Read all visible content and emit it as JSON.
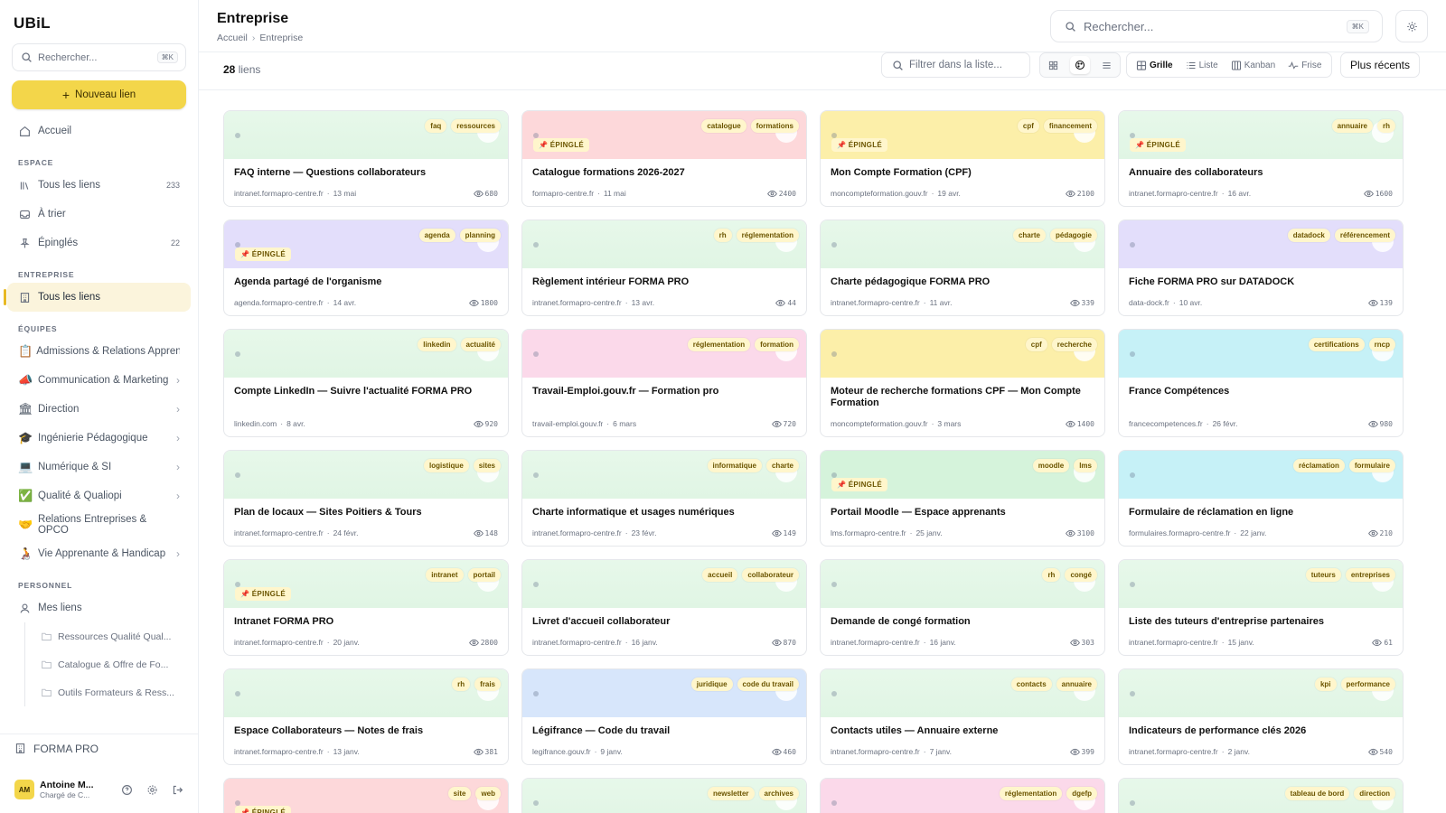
{
  "app": {
    "logo": "UBiL"
  },
  "sidebar": {
    "search_placeholder": "Rechercher...",
    "search_kbd": "⌘K",
    "new_link": "Nouveau lien",
    "home": "Accueil",
    "section_espace": "ESPACE",
    "all_links": "Tous les liens",
    "all_links_count": "233",
    "to_sort": "À trier",
    "pinned": "Épinglés",
    "pinned_count": "22",
    "section_entreprise": "ENTREPRISE",
    "entreprise_all": "Tous les liens",
    "section_equipes": "ÉQUIPES",
    "teams": [
      {
        "emoji": "📋",
        "label": "Admissions & Relations Apprenants",
        "chev": ""
      },
      {
        "emoji": "📣",
        "label": "Communication & Marketing",
        "chev": "›"
      },
      {
        "emoji": "🏛",
        "label": "Direction",
        "chev": "›"
      },
      {
        "emoji": "🎓",
        "label": "Ingénierie Pédagogique",
        "chev": "›"
      },
      {
        "emoji": "💻",
        "label": "Numérique & SI",
        "chev": "›"
      },
      {
        "emoji": "✅",
        "label": "Qualité & Qualiopi",
        "chev": "›"
      },
      {
        "emoji": "🤝",
        "label": "Relations Entreprises & OPCO",
        "chev": ""
      },
      {
        "emoji": "🧑‍🦽",
        "label": "Vie Apprenante & Handicap",
        "chev": "›"
      }
    ],
    "section_personnel": "PERSONNEL",
    "my_links": "Mes liens",
    "folders": [
      "Ressources Qualité Qual...",
      "Catalogue & Offre de Fo...",
      "Outils Formateurs & Ress..."
    ],
    "org": "FORMA PRO",
    "user": {
      "initials": "AM",
      "name": "Antoine M...",
      "role": "Chargé de C..."
    }
  },
  "header": {
    "title": "Entreprise",
    "crumb_home": "Accueil",
    "crumb_current": "Entreprise",
    "search_placeholder": "Rechercher...",
    "search_kbd": "⌘K"
  },
  "toolbar": {
    "count": "28",
    "count_label": "liens",
    "filter_placeholder": "Filtrer dans la liste...",
    "views": [
      "Grille",
      "Liste",
      "Kanban",
      "Frise"
    ],
    "active_view": "Grille",
    "sort": "Plus récents"
  },
  "colors": {
    "accent": "#f3d64a",
    "tag_bg": "#fff6cc"
  },
  "cards": [
    {
      "title": "FAQ interne — Questions collaborateurs",
      "domain": "intranet.formapro-centre.fr",
      "date": "13 mai",
      "views": "680",
      "tags": [
        "faq",
        "ressources"
      ],
      "pinned": false,
      "color": "green"
    },
    {
      "title": "Catalogue formations 2026-2027",
      "domain": "formapro-centre.fr",
      "date": "11 mai",
      "views": "2400",
      "tags": [
        "catalogue",
        "formations"
      ],
      "pinned": true,
      "color": "pink"
    },
    {
      "title": "Mon Compte Formation (CPF)",
      "domain": "moncompteformation.gouv.fr",
      "date": "19 avr.",
      "views": "2100",
      "tags": [
        "cpf",
        "financement"
      ],
      "pinned": true,
      "color": "yellow"
    },
    {
      "title": "Annuaire des collaborateurs",
      "domain": "intranet.formapro-centre.fr",
      "date": "16 avr.",
      "views": "1600",
      "tags": [
        "annuaire",
        "rh"
      ],
      "pinned": true,
      "color": "green"
    },
    {
      "title": "Agenda partagé de l'organisme",
      "domain": "agenda.formapro-centre.fr",
      "date": "14 avr.",
      "views": "1800",
      "tags": [
        "agenda",
        "planning"
      ],
      "pinned": true,
      "color": "purple"
    },
    {
      "title": "Règlement intérieur FORMA PRO",
      "domain": "intranet.formapro-centre.fr",
      "date": "13 avr.",
      "views": "44",
      "tags": [
        "rh",
        "réglementation"
      ],
      "pinned": false,
      "color": "green"
    },
    {
      "title": "Charte pédagogique FORMA PRO",
      "domain": "intranet.formapro-centre.fr",
      "date": "11 avr.",
      "views": "339",
      "tags": [
        "charte",
        "pédagogie"
      ],
      "pinned": false,
      "color": "green"
    },
    {
      "title": "Fiche FORMA PRO sur DATADOCK",
      "domain": "data-dock.fr",
      "date": "10 avr.",
      "views": "139",
      "tags": [
        "datadock",
        "référencement"
      ],
      "pinned": false,
      "color": "purple"
    },
    {
      "title": "Compte LinkedIn — Suivre l'actualité FORMA PRO",
      "domain": "linkedin.com",
      "date": "8 avr.",
      "views": "920",
      "tags": [
        "linkedin",
        "actualité"
      ],
      "pinned": false,
      "color": "green"
    },
    {
      "title": "Travail-Emploi.gouv.fr — Formation pro",
      "domain": "travail-emploi.gouv.fr",
      "date": "6 mars",
      "views": "720",
      "tags": [
        "réglementation",
        "formation"
      ],
      "pinned": false,
      "color": "pinkb"
    },
    {
      "title": "Moteur de recherche formations CPF — Mon Compte Formation",
      "domain": "moncompteformation.gouv.fr",
      "date": "3 mars",
      "views": "1400",
      "tags": [
        "cpf",
        "recherche"
      ],
      "pinned": false,
      "color": "yellow"
    },
    {
      "title": "France Compétences",
      "domain": "francecompetences.fr",
      "date": "26 févr.",
      "views": "980",
      "tags": [
        "certifications",
        "rncp"
      ],
      "pinned": false,
      "color": "cyan"
    },
    {
      "title": "Plan de locaux — Sites Poitiers & Tours",
      "domain": "intranet.formapro-centre.fr",
      "date": "24 févr.",
      "views": "148",
      "tags": [
        "logistique",
        "sites"
      ],
      "pinned": false,
      "color": "green"
    },
    {
      "title": "Charte informatique et usages numériques",
      "domain": "intranet.formapro-centre.fr",
      "date": "23 févr.",
      "views": "149",
      "tags": [
        "informatique",
        "charte"
      ],
      "pinned": false,
      "color": "green"
    },
    {
      "title": "Portail Moodle — Espace apprenants",
      "domain": "lms.formapro-centre.fr",
      "date": "25 janv.",
      "views": "3100",
      "tags": [
        "moodle",
        "lms"
      ],
      "pinned": true,
      "color": "green2"
    },
    {
      "title": "Formulaire de réclamation en ligne",
      "domain": "formulaires.formapro-centre.fr",
      "date": "22 janv.",
      "views": "210",
      "tags": [
        "réclamation",
        "formulaire"
      ],
      "pinned": false,
      "color": "cyan"
    },
    {
      "title": "Intranet FORMA PRO",
      "domain": "intranet.formapro-centre.fr",
      "date": "20 janv.",
      "views": "2800",
      "tags": [
        "intranet",
        "portail"
      ],
      "pinned": true,
      "color": "green"
    },
    {
      "title": "Livret d'accueil collaborateur",
      "domain": "intranet.formapro-centre.fr",
      "date": "16 janv.",
      "views": "870",
      "tags": [
        "accueil",
        "collaborateur"
      ],
      "pinned": false,
      "color": "green"
    },
    {
      "title": "Demande de congé formation",
      "domain": "intranet.formapro-centre.fr",
      "date": "16 janv.",
      "views": "303",
      "tags": [
        "rh",
        "congé"
      ],
      "pinned": false,
      "color": "green"
    },
    {
      "title": "Liste des tuteurs d'entreprise partenaires",
      "domain": "intranet.formapro-centre.fr",
      "date": "15 janv.",
      "views": "61",
      "tags": [
        "tuteurs",
        "entreprises"
      ],
      "pinned": false,
      "color": "green"
    },
    {
      "title": "Espace Collaborateurs — Notes de frais",
      "domain": "intranet.formapro-centre.fr",
      "date": "13 janv.",
      "views": "381",
      "tags": [
        "rh",
        "frais"
      ],
      "pinned": false,
      "color": "green"
    },
    {
      "title": "Légifrance — Code du travail",
      "domain": "legifrance.gouv.fr",
      "date": "9 janv.",
      "views": "460",
      "tags": [
        "juridique",
        "code du travail"
      ],
      "pinned": false,
      "color": "blue"
    },
    {
      "title": "Contacts utiles — Annuaire externe",
      "domain": "intranet.formapro-centre.fr",
      "date": "7 janv.",
      "views": "399",
      "tags": [
        "contacts",
        "annuaire"
      ],
      "pinned": false,
      "color": "green"
    },
    {
      "title": "Indicateurs de performance clés 2026",
      "domain": "intranet.formapro-centre.fr",
      "date": "2 janv.",
      "views": "540",
      "tags": [
        "kpi",
        "performance"
      ],
      "pinned": false,
      "color": "green"
    },
    {
      "title": "",
      "domain": "",
      "date": "",
      "views": "",
      "tags": [
        "site",
        "web"
      ],
      "pinned": true,
      "color": "pink"
    },
    {
      "title": "",
      "domain": "",
      "date": "",
      "views": "",
      "tags": [
        "newsletter",
        "archives"
      ],
      "pinned": false,
      "color": "green"
    },
    {
      "title": "",
      "domain": "",
      "date": "",
      "views": "",
      "tags": [
        "réglementation",
        "dgefp"
      ],
      "pinned": false,
      "color": "pinkb"
    },
    {
      "title": "",
      "domain": "",
      "date": "",
      "views": "",
      "tags": [
        "tableau de bord",
        "direction"
      ],
      "pinned": false,
      "color": "green"
    }
  ],
  "pin_label": "ÉPINGLÉ"
}
